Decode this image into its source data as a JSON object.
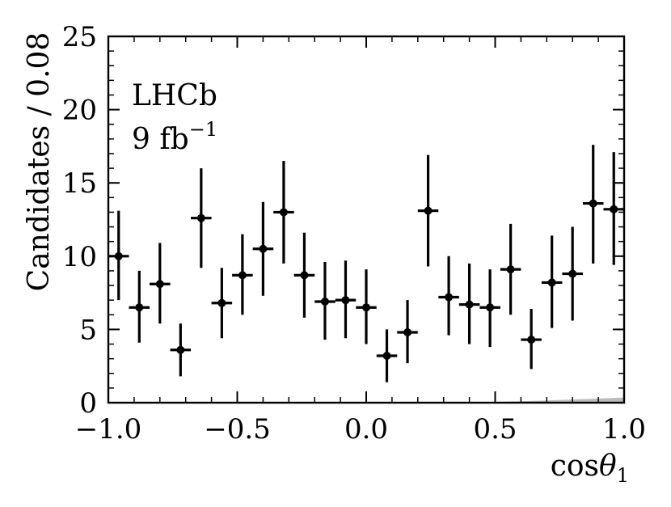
{
  "chart_data": {
    "type": "scatter",
    "xlabel": "cos",
    "xlabel_symbol": "θ",
    "xlabel_subscript": "1",
    "ylabel": "Candidates / 0.08",
    "xlim": [
      -1.0,
      1.0
    ],
    "ylim": [
      0,
      25
    ],
    "x_ticks": [
      -1.0,
      -0.5,
      0.0,
      0.5,
      1.0
    ],
    "x_tick_labels": [
      "−1.0",
      "−0.5",
      "0.0",
      "0.5",
      "1.0"
    ],
    "y_ticks": [
      0,
      5,
      10,
      15,
      20,
      25
    ],
    "y_tick_labels": [
      "0",
      "5",
      "10",
      "15",
      "20",
      "25"
    ],
    "grid": false,
    "annotation_experiment": "LHCb",
    "annotation_lumi": "9 fb",
    "annotation_lumi_exp": "−1",
    "bin_half_width": 0.04,
    "series": [
      {
        "style": "points-with-errors",
        "color": "#000000",
        "x": [
          -0.96,
          -0.88,
          -0.8,
          -0.72,
          -0.64,
          -0.56,
          -0.48,
          -0.4,
          -0.32,
          -0.24,
          -0.16,
          -0.08,
          0.0,
          0.08,
          0.16,
          0.24,
          0.32,
          0.4,
          0.48,
          0.56,
          0.64,
          0.72,
          0.8,
          0.88,
          0.96
        ],
        "y": [
          10.0,
          6.5,
          8.1,
          3.6,
          12.6,
          6.8,
          8.7,
          10.5,
          13.0,
          8.7,
          6.9,
          7.0,
          6.5,
          3.2,
          4.8,
          13.1,
          7.2,
          6.7,
          6.5,
          9.1,
          4.3,
          8.2,
          8.8,
          13.6,
          13.2
        ],
        "y_low": [
          7.0,
          4.1,
          5.4,
          1.8,
          9.2,
          4.4,
          6.0,
          7.3,
          9.5,
          5.8,
          4.3,
          4.4,
          4.0,
          1.4,
          2.7,
          9.3,
          4.6,
          4.0,
          3.8,
          6.0,
          2.3,
          5.1,
          5.6,
          9.5,
          9.4
        ],
        "y_high": [
          13.1,
          9.0,
          10.9,
          5.4,
          16.0,
          9.2,
          11.5,
          13.7,
          16.5,
          11.6,
          9.6,
          9.7,
          9.1,
          5.0,
          7.0,
          16.9,
          10.0,
          9.5,
          9.1,
          12.2,
          6.4,
          11.4,
          12.0,
          17.6,
          17.1
        ]
      },
      {
        "style": "filled-band",
        "color": "#bbbbbb",
        "x": [
          0.3,
          0.5,
          0.7,
          0.85,
          1.0
        ],
        "y": [
          0.0,
          0.05,
          0.15,
          0.25,
          0.35
        ]
      }
    ]
  }
}
